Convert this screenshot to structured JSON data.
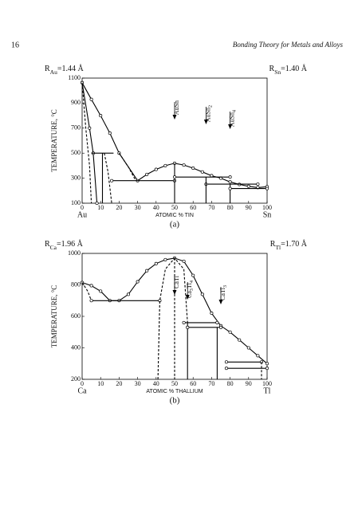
{
  "header": {
    "page_number": "16",
    "running_title": "Bonding Theory for Metals and Alloys"
  },
  "chart_data": [
    {
      "type": "line",
      "caption": "(a)",
      "x_label": "ATOMIC % TIN",
      "y_label": "TEMPERATURE, °C",
      "end_labels": [
        "Au",
        "Sn"
      ],
      "left_radius": {
        "symbol": "R",
        "subscript": "Au",
        "text": "=1.44 Å"
      },
      "right_radius": {
        "symbol": "R",
        "subscript": "Sn",
        "text": "=1.40 Å"
      },
      "xlim": [
        0,
        100
      ],
      "xticks": [
        0,
        10,
        20,
        30,
        40,
        50,
        60,
        70,
        80,
        90,
        100
      ],
      "ylim": [
        100,
        1100
      ],
      "yticks": [
        100,
        300,
        500,
        700,
        900,
        1100
      ],
      "annotations": [
        {
          "x": 50,
          "label": {
            "main": "AuSn",
            "subscript": ""
          }
        },
        {
          "x": 67,
          "label": {
            "main": "AuSn",
            "subscript": "2"
          }
        },
        {
          "x": 80,
          "label": {
            "main": "AuSn",
            "subscript": "4"
          }
        }
      ],
      "series": [
        {
          "color": "#000000",
          "dashed": false,
          "markers": true,
          "x": [
            0,
            5,
            10,
            15,
            20,
            30,
            35,
            40,
            45,
            50,
            55,
            60,
            65,
            70,
            75,
            80,
            85,
            90,
            95,
            100
          ],
          "values": [
            1063,
            930,
            800,
            660,
            500,
            280,
            330,
            370,
            400,
            419,
            405,
            380,
            350,
            320,
            300,
            270,
            250,
            235,
            225,
            232
          ]
        },
        {
          "color": "#000000",
          "dashed": false,
          "markers": true,
          "x": [
            0,
            4,
            6,
            8
          ],
          "values": [
            1063,
            700,
            500,
            100
          ]
        },
        {
          "color": "#000000",
          "dashed": true,
          "markers": false,
          "x": [
            0,
            2,
            4,
            5
          ],
          "values": [
            1063,
            700,
            400,
            100
          ]
        },
        {
          "color": "#000000",
          "dashed": true,
          "markers": false,
          "x": [
            20,
            25,
            29
          ],
          "values": [
            500,
            390,
            280
          ]
        },
        {
          "color": "#000000",
          "dashed": true,
          "markers": false,
          "x": [
            12,
            14,
            16
          ],
          "values": [
            500,
            350,
            100
          ]
        },
        {
          "color": "#000000",
          "dashed": false,
          "markers": false,
          "x": [
            5,
            17
          ],
          "values": [
            500,
            500
          ]
        },
        {
          "color": "#000000",
          "dashed": false,
          "markers": false,
          "x": [
            11,
            11
          ],
          "values": [
            500,
            100
          ]
        },
        {
          "color": "#000000",
          "dashed": false,
          "markers": true,
          "x": [
            16,
            50
          ],
          "values": [
            280,
            280
          ]
        },
        {
          "color": "#000000",
          "dashed": false,
          "markers": false,
          "x": [
            50,
            50
          ],
          "values": [
            419,
            100
          ]
        },
        {
          "color": "#000000",
          "dashed": false,
          "markers": true,
          "x": [
            50,
            80
          ],
          "values": [
            309,
            309
          ]
        },
        {
          "color": "#000000",
          "dashed": false,
          "markers": true,
          "x": [
            67,
            95
          ],
          "values": [
            252,
            252
          ]
        },
        {
          "color": "#000000",
          "dashed": false,
          "markers": false,
          "x": [
            67,
            67
          ],
          "values": [
            309,
            100
          ]
        },
        {
          "color": "#000000",
          "dashed": false,
          "markers": false,
          "x": [
            80,
            80
          ],
          "values": [
            252,
            100
          ]
        },
        {
          "color": "#000000",
          "dashed": false,
          "markers": true,
          "x": [
            80,
            100
          ],
          "values": [
            217,
            217
          ]
        }
      ]
    },
    {
      "type": "line",
      "caption": "(b)",
      "x_label": "ATOMIC % THALLIUM",
      "y_label": "TEMPERATURE, °C",
      "end_labels": [
        "Ca",
        "Tl"
      ],
      "left_radius": {
        "symbol": "R",
        "subscript": "Ca",
        "text": "=1.96 Å"
      },
      "right_radius": {
        "symbol": "R",
        "subscript": "Tl",
        "text": "=1.70 Å"
      },
      "xlim": [
        0,
        100
      ],
      "xticks": [
        0,
        10,
        20,
        30,
        40,
        50,
        60,
        70,
        80,
        90,
        100
      ],
      "ylim": [
        200,
        1000
      ],
      "yticks": [
        200,
        400,
        600,
        800,
        1000
      ],
      "annotations": [
        {
          "x": 50,
          "label": {
            "main": "CaTl",
            "subscript": ""
          }
        },
        {
          "x": 57,
          "label": {
            "main": "Ca",
            "subscript": "3",
            "rest": "Tl",
            "subscript2": "4"
          }
        },
        {
          "x": 75,
          "label": {
            "main": "CaTl",
            "subscript": "3"
          }
        }
      ],
      "series": [
        {
          "color": "#000000",
          "dashed": false,
          "markers": true,
          "x": [
            0,
            5,
            10,
            15,
            20,
            25,
            30,
            35,
            40,
            45,
            50,
            55,
            60,
            65,
            70,
            75,
            80,
            85,
            90,
            95,
            100
          ],
          "values": [
            815,
            795,
            760,
            700,
            700,
            740,
            820,
            890,
            935,
            960,
            970,
            950,
            860,
            740,
            620,
            540,
            500,
            450,
            400,
            350,
            300
          ]
        },
        {
          "color": "#000000",
          "dashed": true,
          "markers": false,
          "x": [
            0,
            3,
            5
          ],
          "values": [
            815,
            760,
            700
          ]
        },
        {
          "color": "#000000",
          "dashed": false,
          "markers": true,
          "x": [
            5,
            42
          ],
          "values": [
            700,
            700
          ]
        },
        {
          "color": "#000000",
          "dashed": true,
          "markers": false,
          "x": [
            41,
            42,
            45,
            50,
            55,
            57
          ],
          "values": [
            200,
            700,
            900,
            970,
            900,
            560
          ]
        },
        {
          "color": "#000000",
          "dashed": true,
          "markers": false,
          "x": [
            50,
            50
          ],
          "values": [
            970,
            200
          ]
        },
        {
          "color": "#000000",
          "dashed": false,
          "markers": true,
          "x": [
            55,
            73
          ],
          "values": [
            560,
            560
          ]
        },
        {
          "color": "#000000",
          "dashed": false,
          "markers": false,
          "x": [
            57,
            57
          ],
          "values": [
            560,
            200
          ]
        },
        {
          "color": "#000000",
          "dashed": false,
          "markers": true,
          "x": [
            57,
            75
          ],
          "values": [
            530,
            530
          ]
        },
        {
          "color": "#000000",
          "dashed": false,
          "markers": false,
          "x": [
            73,
            73
          ],
          "values": [
            530,
            200
          ]
        },
        {
          "color": "#000000",
          "dashed": false,
          "markers": true,
          "x": [
            78,
            97
          ],
          "values": [
            310,
            310
          ]
        },
        {
          "color": "#000000",
          "dashed": false,
          "markers": true,
          "x": [
            78,
            100
          ],
          "values": [
            270,
            270
          ]
        },
        {
          "color": "#000000",
          "dashed": true,
          "markers": false,
          "x": [
            97,
            97
          ],
          "values": [
            310,
            200
          ]
        }
      ]
    }
  ]
}
